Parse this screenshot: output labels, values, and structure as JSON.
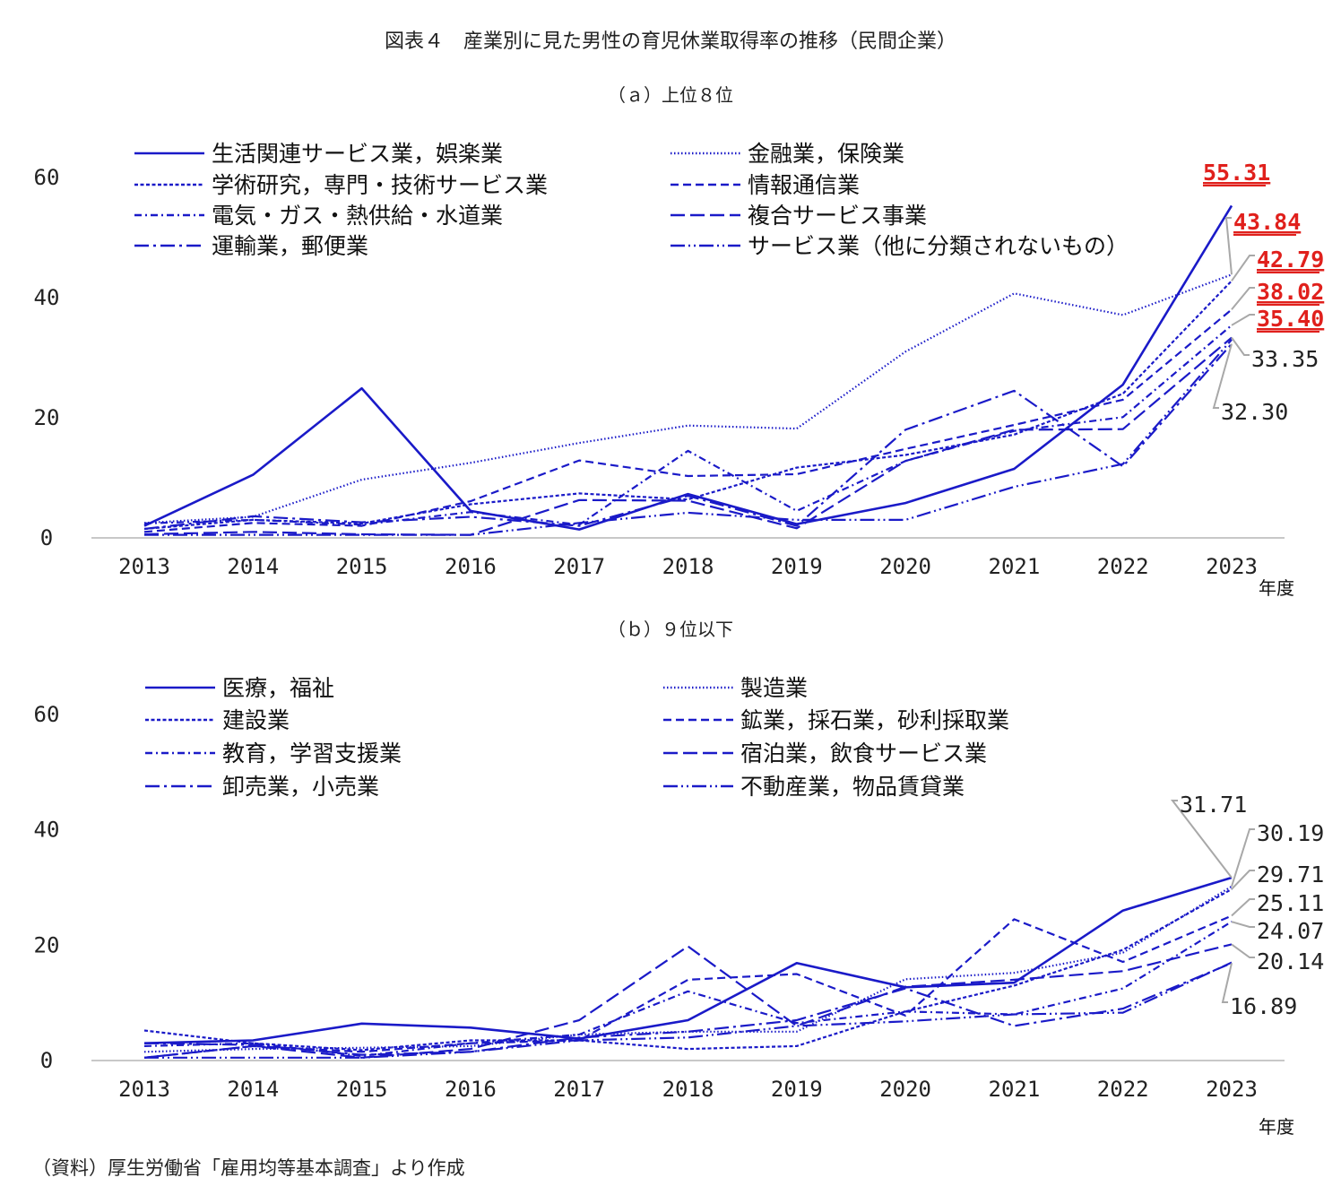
{
  "figure_title": "図表４　産業別に見た男性の育児休業取得率の推移（民間企業）",
  "source": "（資料）厚生労働省「雇用均等基本調査」より作成",
  "colors": {
    "line": "#1a1ac8",
    "highlight": "#e0201c",
    "axis": "#c8c8c8",
    "leader": "#a8a8a8"
  },
  "chart_data": [
    {
      "type": "line",
      "title": "（ａ）上位８位",
      "x": [
        "2013",
        "2014",
        "2015",
        "2016",
        "2017",
        "2018",
        "2019",
        "2020",
        "2021",
        "2022",
        "2023"
      ],
      "xunit": "年度",
      "ylim": [
        0,
        60
      ],
      "yticks": [
        "0",
        "20",
        "40",
        "60"
      ],
      "legend_position": "top",
      "series": [
        {
          "name": "生活関連サービス業，娯楽業",
          "dash": "solid",
          "values": [
            2.0,
            10.5,
            24.9,
            4.5,
            1.4,
            7.3,
            2.3,
            5.8,
            11.5,
            25.5,
            55.31
          ]
        },
        {
          "name": "金融業，保険業",
          "dash": "dotted",
          "values": [
            2.5,
            3.5,
            9.7,
            12.5,
            15.8,
            18.7,
            18.2,
            31.0,
            40.7,
            37.1,
            43.84
          ]
        },
        {
          "name": "学術研究，専門・技術サービス業",
          "dash": "shortdash",
          "values": [
            1.5,
            3.0,
            2.4,
            5.6,
            7.4,
            6.4,
            11.7,
            13.8,
            17.2,
            24.0,
            42.79
          ]
        },
        {
          "name": "情報通信業",
          "dash": "dash",
          "values": [
            1.0,
            2.5,
            2.0,
            6.1,
            12.9,
            10.3,
            10.6,
            14.8,
            18.8,
            23.0,
            38.02
          ]
        },
        {
          "name": "電気・ガス・熱供給・水道業",
          "dash": "dashdot",
          "values": [
            2.4,
            3.0,
            2.2,
            4.3,
            2.2,
            14.5,
            4.5,
            12.8,
            17.8,
            20.1,
            35.4
          ]
        },
        {
          "name": "複合サービス事業",
          "dash": "longdash",
          "values": [
            0.6,
            1.0,
            0.6,
            0.5,
            6.3,
            6.2,
            1.6,
            12.8,
            18.0,
            18.1,
            33.35
          ]
        },
        {
          "name": "運輸業，郵便業",
          "dash": "longdashdot",
          "values": [
            1.5,
            3.6,
            2.6,
            3.5,
            2.0,
            7.0,
            2.0,
            18.0,
            24.5,
            11.9,
            32.3
          ]
        },
        {
          "name": "サービス業（他に分類されないもの）",
          "dash": "longdashdotdot",
          "values": [
            0.5,
            0.5,
            0.5,
            0.5,
            2.5,
            4.2,
            3.0,
            3.0,
            8.5,
            12.3,
            33.0
          ]
        }
      ],
      "labels_2023": [
        {
          "text": "55.31",
          "highlight": true
        },
        {
          "text": "43.84",
          "highlight": true
        },
        {
          "text": "42.79",
          "highlight": true
        },
        {
          "text": "38.02",
          "highlight": true
        },
        {
          "text": "35.40",
          "highlight": true
        },
        {
          "text": "33.35",
          "highlight": false
        },
        {
          "text": "32.30",
          "highlight": false
        }
      ]
    },
    {
      "type": "line",
      "title": "（ｂ）９位以下",
      "x": [
        "2013",
        "2014",
        "2015",
        "2016",
        "2017",
        "2018",
        "2019",
        "2020",
        "2021",
        "2022",
        "2023"
      ],
      "xunit": "年度",
      "ylim": [
        0,
        60
      ],
      "yticks": [
        "0",
        "20",
        "40",
        "60"
      ],
      "legend_position": "top",
      "series": [
        {
          "name": "医療，福祉",
          "dash": "solid",
          "values": [
            3.0,
            3.5,
            6.4,
            5.7,
            3.8,
            7.0,
            16.9,
            12.7,
            13.5,
            26.0,
            31.71
          ]
        },
        {
          "name": "製造業",
          "dash": "dotted",
          "values": [
            1.5,
            2.0,
            2.2,
            2.5,
            4.5,
            5.0,
            5.0,
            14.1,
            15.2,
            18.7,
            30.19
          ]
        },
        {
          "name": "建設業",
          "dash": "shortdash",
          "values": [
            5.2,
            3.0,
            1.8,
            3.5,
            3.5,
            2.0,
            2.5,
            8.5,
            13.0,
            19.2,
            29.71
          ]
        },
        {
          "name": "鉱業，採石業，砂利採取業",
          "dash": "dash",
          "values": [
            0.5,
            2.5,
            1.5,
            3.0,
            3.5,
            14.0,
            15.0,
            7.8,
            24.5,
            17.1,
            25.11
          ]
        },
        {
          "name": "教育，学習支援業",
          "dash": "dashdot",
          "values": [
            2.5,
            3.0,
            0.8,
            3.0,
            4.5,
            12.0,
            6.5,
            8.5,
            8.0,
            12.5,
            24.07
          ]
        },
        {
          "name": "宿泊業，飲食サービス業",
          "dash": "longdash",
          "values": [
            0.5,
            2.5,
            0.5,
            2.0,
            7.0,
            19.8,
            6.0,
            12.8,
            14.0,
            15.5,
            20.14
          ]
        },
        {
          "name": "卸売業，小売業",
          "dash": "longdashdot",
          "values": [
            3.0,
            2.7,
            1.0,
            1.5,
            4.0,
            5.0,
            7.0,
            12.5,
            6.0,
            9.0,
            16.89
          ]
        },
        {
          "name": "不動産業，物品賃貸業",
          "dash": "longdashdotdot",
          "values": [
            0.5,
            0.5,
            0.5,
            1.5,
            3.5,
            4.0,
            6.0,
            6.8,
            8.0,
            8.3,
            17.0
          ]
        }
      ],
      "labels_2023": [
        {
          "text": "31.71",
          "highlight": false
        },
        {
          "text": "30.19",
          "highlight": false
        },
        {
          "text": "29.71",
          "highlight": false
        },
        {
          "text": "25.11",
          "highlight": false
        },
        {
          "text": "24.07",
          "highlight": false
        },
        {
          "text": "20.14",
          "highlight": false
        },
        {
          "text": "16.89",
          "highlight": false
        }
      ]
    }
  ]
}
